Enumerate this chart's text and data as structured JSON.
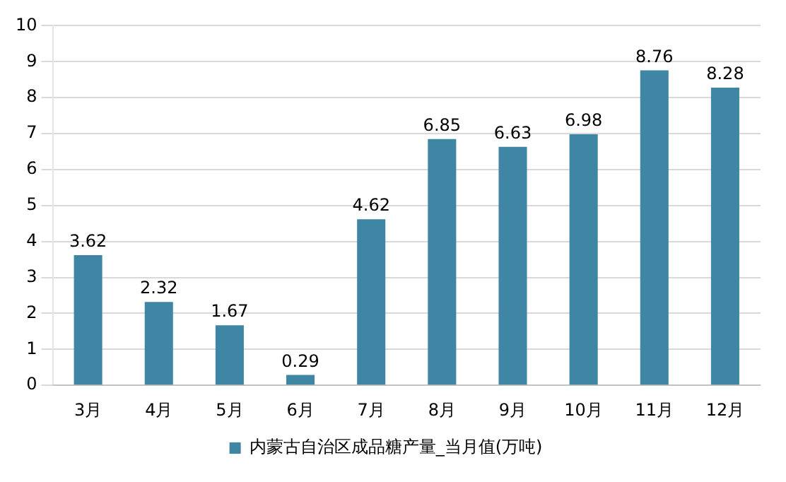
{
  "chart_data": {
    "type": "bar",
    "categories": [
      "3月",
      "4月",
      "5月",
      "6月",
      "7月",
      "8月",
      "9月",
      "10月",
      "11月",
      "12月"
    ],
    "series": [
      {
        "name": "内蒙古自治区成品糖产量_当月值(万吨)",
        "color": "#3f86a4",
        "values": [
          3.62,
          2.32,
          1.67,
          0.29,
          4.62,
          6.85,
          6.63,
          6.98,
          8.76,
          8.28
        ]
      }
    ],
    "ylim": [
      0,
      10
    ],
    "yticks": [
      0,
      1,
      2,
      3,
      4,
      5,
      6,
      7,
      8,
      9,
      10
    ],
    "grid": "y",
    "legend": "bottom",
    "data_labels": true
  }
}
